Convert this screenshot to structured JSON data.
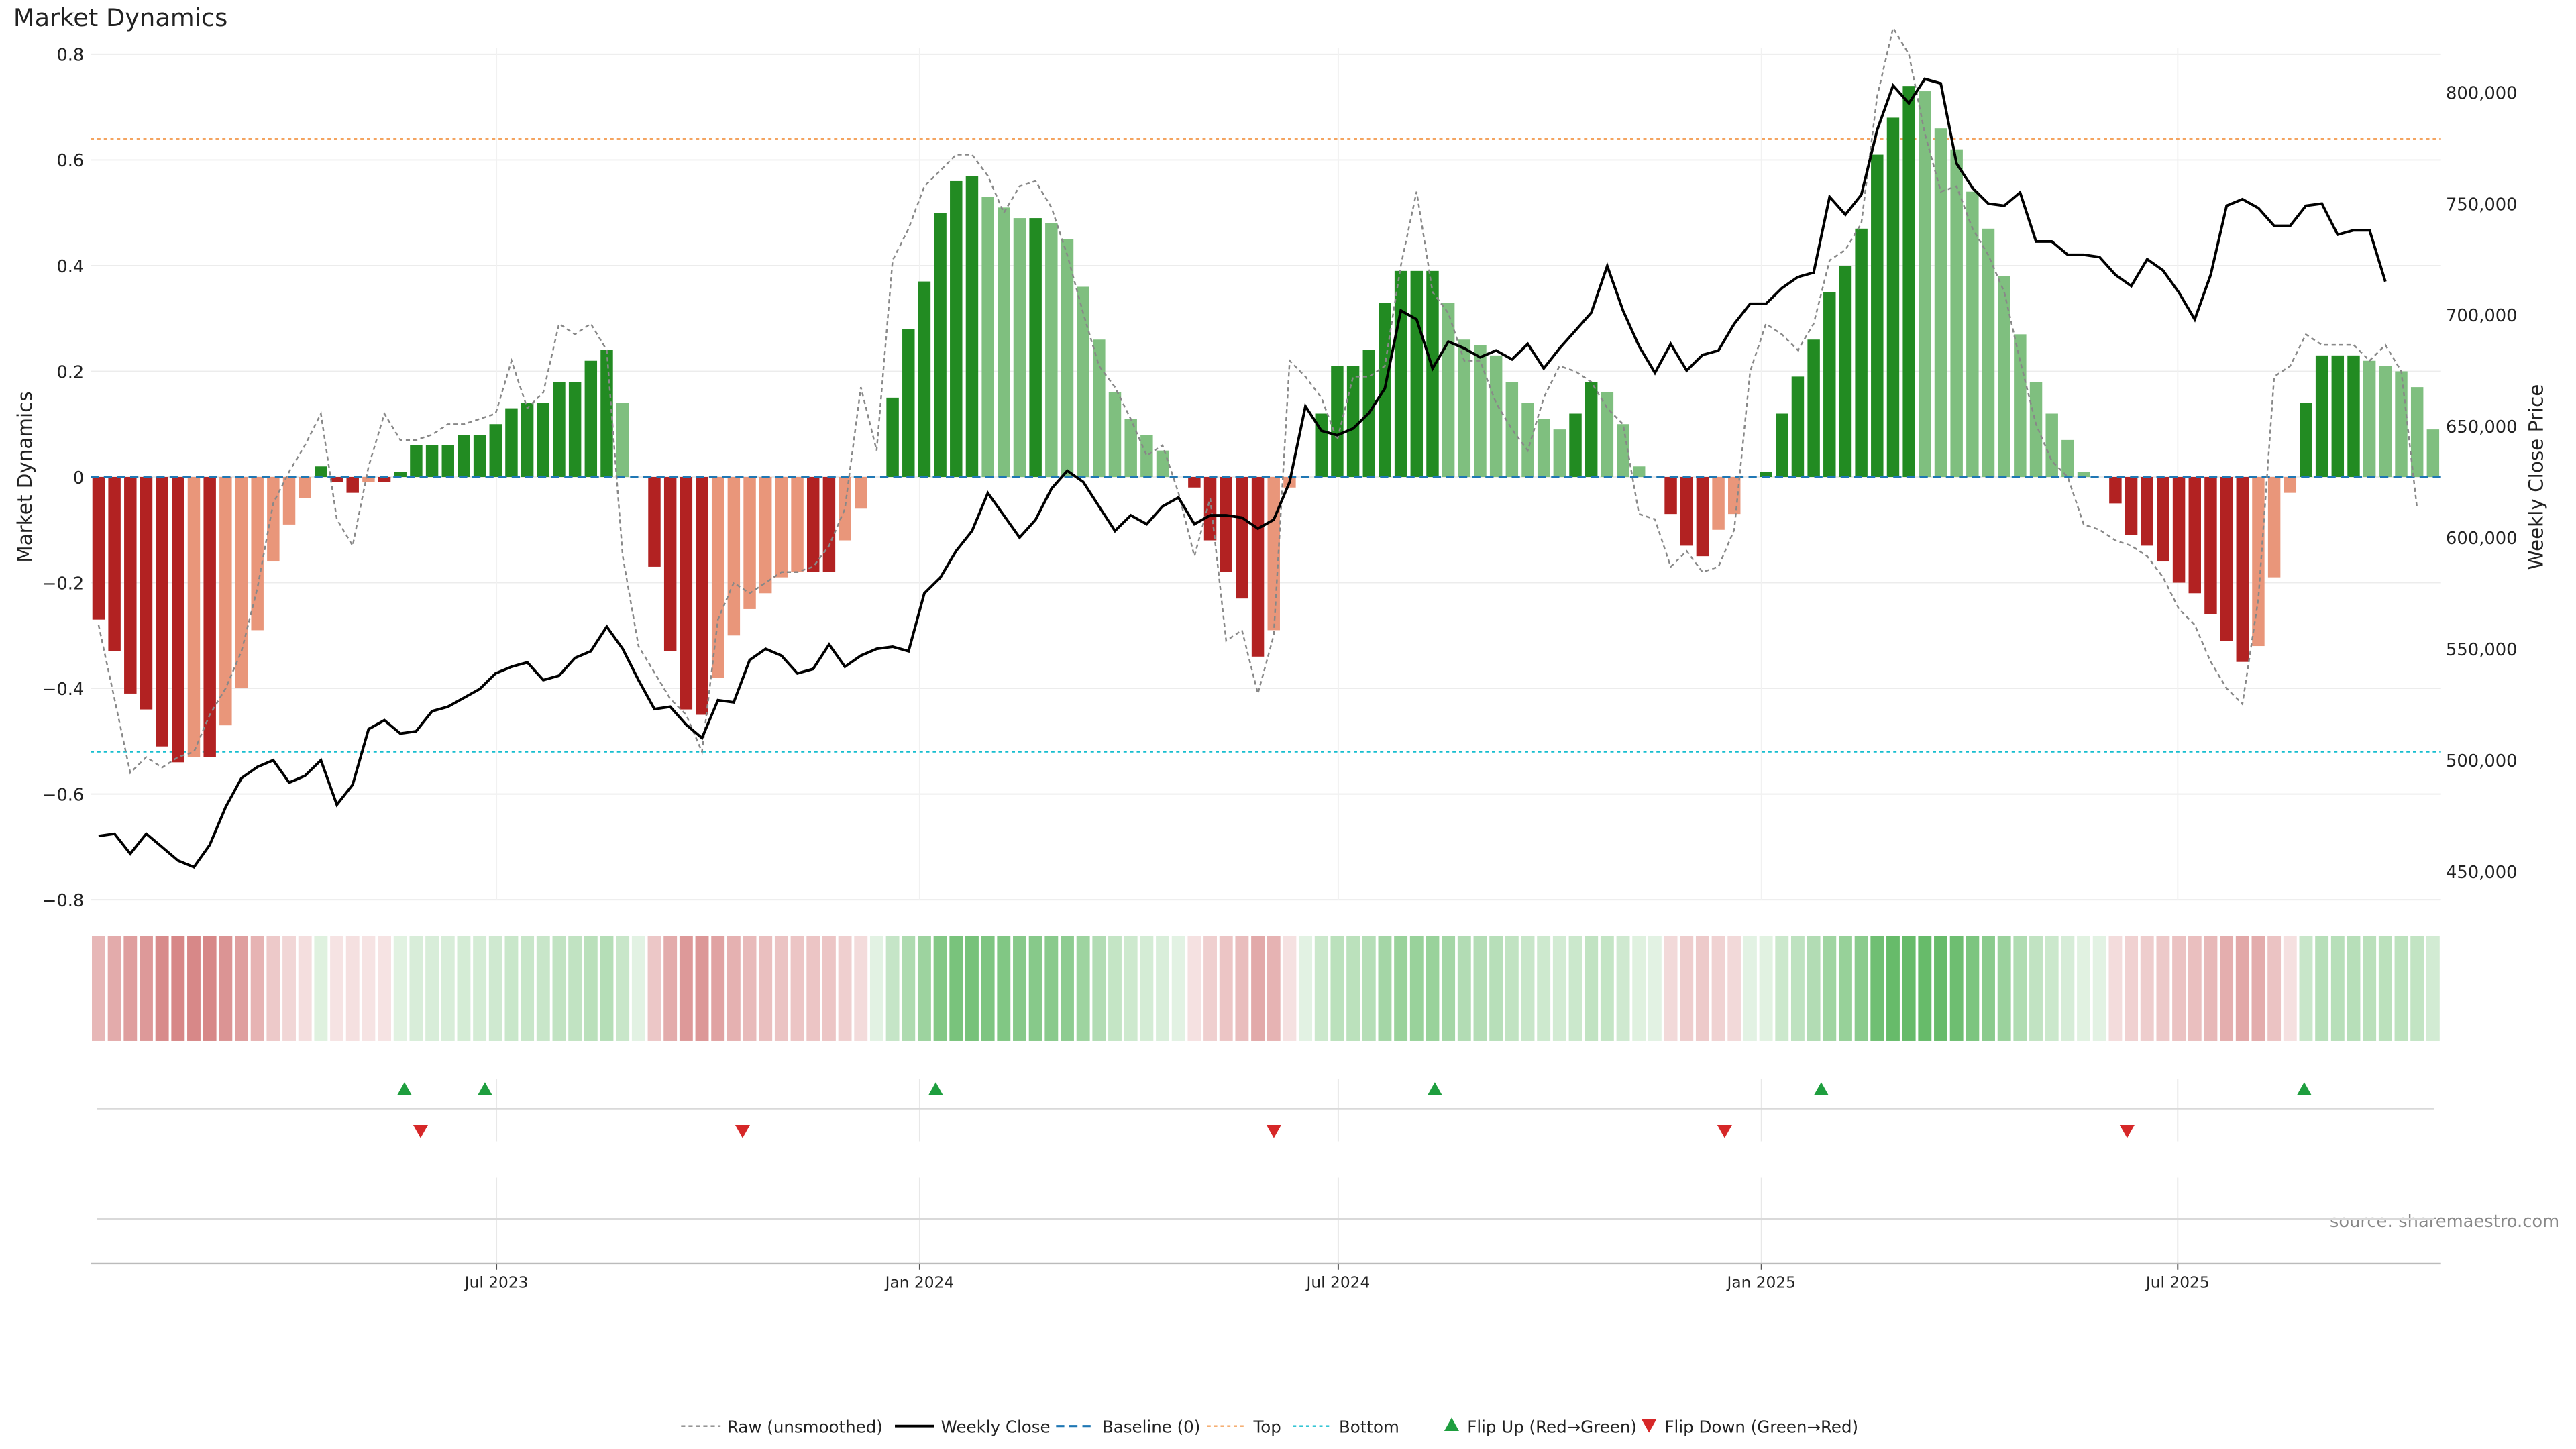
{
  "chart_data": {
    "type": "bar",
    "title": "Market Dynamics",
    "ylabel_left": "Market Dynamics",
    "ylabel_right": "Weekly Close Price",
    "source": "source: sharemaestro.com",
    "left_axis": {
      "ylim": [
        -0.8,
        0.8
      ],
      "ticks": [
        "0.8",
        "0.6",
        "0.4",
        "0.2",
        "0",
        "−0.2",
        "−0.4",
        "−0.6",
        "−0.8"
      ]
    },
    "right_axis": {
      "ylim": [
        430000,
        820000
      ],
      "ticks": [
        {
          "value": 800000,
          "label": "800,000"
        },
        {
          "value": 750000,
          "label": "750,000"
        },
        {
          "value": 700000,
          "label": "700,000"
        },
        {
          "value": 650000,
          "label": "650,000"
        },
        {
          "value": 600000,
          "label": "600,000"
        },
        {
          "value": 550000,
          "label": "550,000"
        },
        {
          "value": 500000,
          "label": "500,000"
        },
        {
          "value": 450000,
          "label": "450,000"
        }
      ]
    },
    "x_axis": {
      "start": "2023-01-09",
      "end": "2025-10-20",
      "ticks": [
        {
          "date": "2023-07-01",
          "label": "Jul 2023"
        },
        {
          "date": "2024-01-01",
          "label": "Jan 2024"
        },
        {
          "date": "2024-07-01",
          "label": "Jul 2024"
        },
        {
          "date": "2025-01-01",
          "label": "Jan 2025"
        },
        {
          "date": "2025-07-01",
          "label": "Jul 2025"
        }
      ]
    },
    "top_threshold": 0.64,
    "bottom_threshold": -0.52,
    "grid": true,
    "legend_position": "bottom-center",
    "colors": {
      "strong_green": "#228B22",
      "light_green": "#7FBF7F",
      "strong_red": "#B22222",
      "light_red": "#E9967A",
      "close": "#000000",
      "raw": "#888888",
      "baseline": "#1f77b4",
      "top": "#F4A460",
      "bottom": "#17BECF",
      "flip_up": "#1E9E3E",
      "flip_down": "#D62728"
    },
    "series": [
      {
        "name": "Market Dynamics",
        "values": [
          -0.27,
          -0.33,
          -0.41,
          -0.44,
          -0.51,
          -0.54,
          -0.53,
          -0.53,
          -0.47,
          -0.4,
          -0.29,
          -0.16,
          -0.09,
          -0.04,
          0.02,
          -0.01,
          -0.03,
          -0.01,
          -0.01,
          0.01,
          0.06,
          0.06,
          0.06,
          0.08,
          0.08,
          0.1,
          0.13,
          0.14,
          0.14,
          0.18,
          0.18,
          0.22,
          0.24,
          0.14,
          0.0,
          -0.17,
          -0.33,
          -0.44,
          -0.45,
          -0.38,
          -0.3,
          -0.25,
          -0.22,
          -0.19,
          -0.18,
          -0.18,
          -0.18,
          -0.12,
          -0.06,
          0.0,
          0.15,
          0.28,
          0.37,
          0.5,
          0.56,
          0.57,
          0.53,
          0.51,
          0.49,
          0.49,
          0.48,
          0.45,
          0.36,
          0.26,
          0.16,
          0.11,
          0.08,
          0.05,
          0.0,
          -0.02,
          -0.12,
          -0.18,
          -0.23,
          -0.34,
          -0.29,
          -0.02,
          0.0,
          0.12,
          0.21,
          0.21,
          0.24,
          0.33,
          0.39,
          0.39,
          0.39,
          0.33,
          0.26,
          0.25,
          0.23,
          0.18,
          0.14,
          0.11,
          0.09,
          0.12,
          0.18,
          0.16,
          0.1,
          0.02,
          0.0,
          -0.07,
          -0.13,
          -0.15,
          -0.1,
          -0.07,
          0.0,
          0.01,
          0.12,
          0.19,
          0.26,
          0.35,
          0.4,
          0.47,
          0.61,
          0.68,
          0.74,
          0.73,
          0.66,
          0.62,
          0.54,
          0.47,
          0.38,
          0.27,
          0.18,
          0.12,
          0.07,
          0.01,
          0.0,
          -0.05,
          -0.11,
          -0.13,
          -0.16,
          -0.2,
          -0.22,
          -0.26,
          -0.31,
          -0.35,
          -0.32,
          -0.19,
          -0.03,
          0.14,
          0.23,
          0.23,
          0.23,
          0.22,
          0.21,
          0.2,
          0.17,
          0.09
        ]
      },
      {
        "name": "Raw (unsmoothed)",
        "values": [
          -0.28,
          -0.42,
          -0.56,
          -0.53,
          -0.55,
          -0.53,
          -0.52,
          -0.45,
          -0.4,
          -0.33,
          -0.21,
          -0.05,
          0.01,
          0.06,
          0.12,
          -0.08,
          -0.13,
          0.02,
          0.12,
          0.07,
          0.07,
          0.08,
          0.1,
          0.1,
          0.11,
          0.12,
          0.22,
          0.13,
          0.16,
          0.29,
          0.27,
          0.29,
          0.24,
          -0.15,
          -0.32,
          -0.37,
          -0.42,
          -0.45,
          -0.52,
          -0.27,
          -0.2,
          -0.22,
          -0.2,
          -0.18,
          -0.18,
          -0.17,
          -0.13,
          -0.06,
          0.17,
          0.05,
          0.41,
          0.47,
          0.55,
          0.58,
          0.61,
          0.61,
          0.57,
          0.5,
          0.55,
          0.56,
          0.51,
          0.42,
          0.31,
          0.21,
          0.17,
          0.11,
          0.04,
          0.06,
          -0.03,
          -0.15,
          -0.04,
          -0.31,
          -0.29,
          -0.41,
          -0.3,
          0.22,
          0.19,
          0.15,
          0.07,
          0.19,
          0.19,
          0.21,
          0.4,
          0.54,
          0.35,
          0.31,
          0.22,
          0.22,
          0.14,
          0.09,
          0.05,
          0.15,
          0.21,
          0.2,
          0.18,
          0.13,
          0.1,
          -0.07,
          -0.08,
          -0.17,
          -0.14,
          -0.18,
          -0.17,
          -0.1,
          0.2,
          0.29,
          0.27,
          0.24,
          0.29,
          0.41,
          0.43,
          0.48,
          0.72,
          0.85,
          0.8,
          0.65,
          0.54,
          0.55,
          0.47,
          0.42,
          0.35,
          0.22,
          0.1,
          0.03,
          0.0,
          -0.09,
          -0.1,
          -0.12,
          -0.13,
          -0.15,
          -0.19,
          -0.25,
          -0.28,
          -0.35,
          -0.4,
          -0.43,
          -0.23,
          0.19,
          0.21,
          0.27,
          0.25,
          0.25,
          0.25,
          0.22,
          0.25,
          0.2,
          -0.06
        ]
      },
      {
        "name": "Weekly Close",
        "values": [
          466000,
          467000,
          458000,
          467000,
          461000,
          455000,
          452000,
          462000,
          479000,
          492000,
          497000,
          500000,
          490000,
          493000,
          500000,
          480000,
          489000,
          514000,
          518000,
          512000,
          513000,
          522000,
          524000,
          528000,
          532000,
          539000,
          542000,
          544000,
          536000,
          538000,
          546000,
          549000,
          560000,
          550000,
          536000,
          523000,
          524000,
          516000,
          510000,
          527000,
          526000,
          545000,
          550000,
          547000,
          539000,
          541000,
          552000,
          542000,
          547000,
          550000,
          551000,
          549000,
          575000,
          582000,
          594000,
          603000,
          620000,
          610000,
          600000,
          608000,
          622000,
          630000,
          625000,
          614000,
          603000,
          610000,
          606000,
          614000,
          618000,
          606000,
          610000,
          610000,
          609000,
          604000,
          608000,
          625000,
          659000,
          648000,
          646000,
          649000,
          656000,
          667000,
          702000,
          698000,
          676000,
          688000,
          685000,
          681000,
          684000,
          680000,
          687000,
          676000,
          685000,
          693000,
          701000,
          722000,
          702000,
          686000,
          674000,
          687000,
          675000,
          682000,
          684000,
          696000,
          705000,
          705000,
          712000,
          717000,
          719000,
          753000,
          745000,
          754000,
          783000,
          803000,
          795000,
          806000,
          804000,
          768000,
          757000,
          750000,
          749000,
          755000,
          733000,
          733000,
          727000,
          727000,
          726000,
          718000,
          713000,
          725000,
          720000,
          710000,
          698000,
          718000,
          749000,
          752000,
          748000,
          740000,
          740000,
          749000,
          750000,
          736000,
          738000,
          738000,
          715000
        ]
      }
    ],
    "flip_up_dates": [
      "2023-05-22",
      "2023-06-26",
      "2024-01-08",
      "2024-08-12",
      "2025-01-27",
      "2025-08-25"
    ],
    "flip_down_dates": [
      "2023-05-29",
      "2023-10-16",
      "2024-06-03",
      "2024-12-16",
      "2025-06-09"
    ],
    "legend": [
      {
        "label": "Raw (unsmoothed)",
        "marker": "dotted-line"
      },
      {
        "label": "Weekly Close",
        "marker": "solid-line"
      },
      {
        "label": "Baseline (0)",
        "marker": "dashed-line"
      },
      {
        "label": "Top",
        "marker": "dotted-line-orange"
      },
      {
        "label": "Bottom",
        "marker": "dotted-line-cyan"
      },
      {
        "label": "Flip Up (Red→Green)",
        "marker": "triangle-up"
      },
      {
        "label": "Flip Down (Green→Red)",
        "marker": "triangle-down"
      }
    ]
  }
}
